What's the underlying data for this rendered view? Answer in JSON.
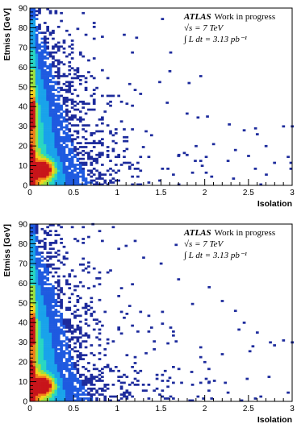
{
  "chart_data": [
    {
      "type": "heatmap",
      "xlabel": "Isolation",
      "ylabel": "Etmiss [GeV]",
      "xlim": [
        0,
        3
      ],
      "ylim": [
        0,
        90
      ],
      "x_ticks": [
        "0",
        "0.5",
        "1",
        "1.5",
        "2",
        "2.5",
        "3"
      ],
      "y_ticks": [
        "0",
        "10",
        "20",
        "30",
        "40",
        "50",
        "60",
        "70",
        "80",
        "90"
      ],
      "annotation": {
        "experiment": "ATLAS",
        "status": "Work in progress",
        "energy": "√s = 7 TeV",
        "luminosity": "∫ L dt = 3.13 pb⁻¹"
      },
      "hotspots": [
        {
          "x": 0.15,
          "y": 8,
          "level": "max"
        },
        {
          "x": 0.04,
          "y": 37,
          "level": "high"
        }
      ],
      "colormap": [
        "#1d2b9c",
        "#1e5ae0",
        "#19a3ea",
        "#28d6c2",
        "#9ce13f",
        "#f3d11c",
        "#f07b1a",
        "#c8141a"
      ],
      "scatter_isolated": [
        [
          1.22,
          75
        ],
        [
          1.6,
          58
        ],
        [
          1.82,
          52
        ],
        [
          1.57,
          42
        ],
        [
          2.03,
          35
        ],
        [
          2.28,
          31
        ],
        [
          2.58,
          29
        ],
        [
          2.9,
          30
        ],
        [
          2.6,
          26
        ],
        [
          2.45,
          28
        ],
        [
          3.0,
          30
        ],
        [
          1.9,
          20
        ],
        [
          2.1,
          21
        ],
        [
          2.35,
          18
        ],
        [
          2.5,
          15
        ],
        [
          2.7,
          20
        ],
        [
          1.97,
          10
        ],
        [
          1.7,
          15
        ]
      ]
    },
    {
      "type": "heatmap",
      "xlabel": "Isolation",
      "ylabel": "Etmiss [GeV]",
      "xlim": [
        0,
        3
      ],
      "ylim": [
        0,
        90
      ],
      "x_ticks": [
        "0",
        "0.5",
        "1",
        "1.5",
        "2",
        "2.5",
        "3"
      ],
      "y_ticks": [
        "0",
        "10",
        "20",
        "30",
        "40",
        "50",
        "60",
        "70",
        "80",
        "90"
      ],
      "annotation": {
        "experiment": "ATLAS",
        "status": "Work in progress",
        "energy": "√s = 7 TeV",
        "luminosity": "∫ L dt = 3.13 pb⁻¹"
      },
      "hotspots": [
        {
          "x": 0.15,
          "y": 8,
          "level": "max"
        },
        {
          "x": 0.04,
          "y": 37,
          "level": "high"
        }
      ],
      "colormap": [
        "#1d2b9c",
        "#1e5ae0",
        "#19a3ea",
        "#28d6c2",
        "#9ce13f",
        "#f3d11c",
        "#f07b1a",
        "#c8141a"
      ],
      "scatter_isolated": [
        [
          0.72,
          90
        ],
        [
          1.1,
          79
        ],
        [
          1.3,
          73
        ],
        [
          1.5,
          70
        ],
        [
          1.7,
          62
        ],
        [
          2.05,
          58
        ],
        [
          2.2,
          51
        ],
        [
          2.35,
          46
        ],
        [
          2.45,
          40
        ],
        [
          2.6,
          35
        ],
        [
          2.75,
          30
        ],
        [
          2.9,
          31
        ],
        [
          3.0,
          30
        ],
        [
          2.55,
          28
        ],
        [
          2.2,
          24
        ],
        [
          2.0,
          20
        ],
        [
          1.85,
          15
        ],
        [
          2.05,
          10
        ],
        [
          1.6,
          12
        ]
      ]
    }
  ]
}
